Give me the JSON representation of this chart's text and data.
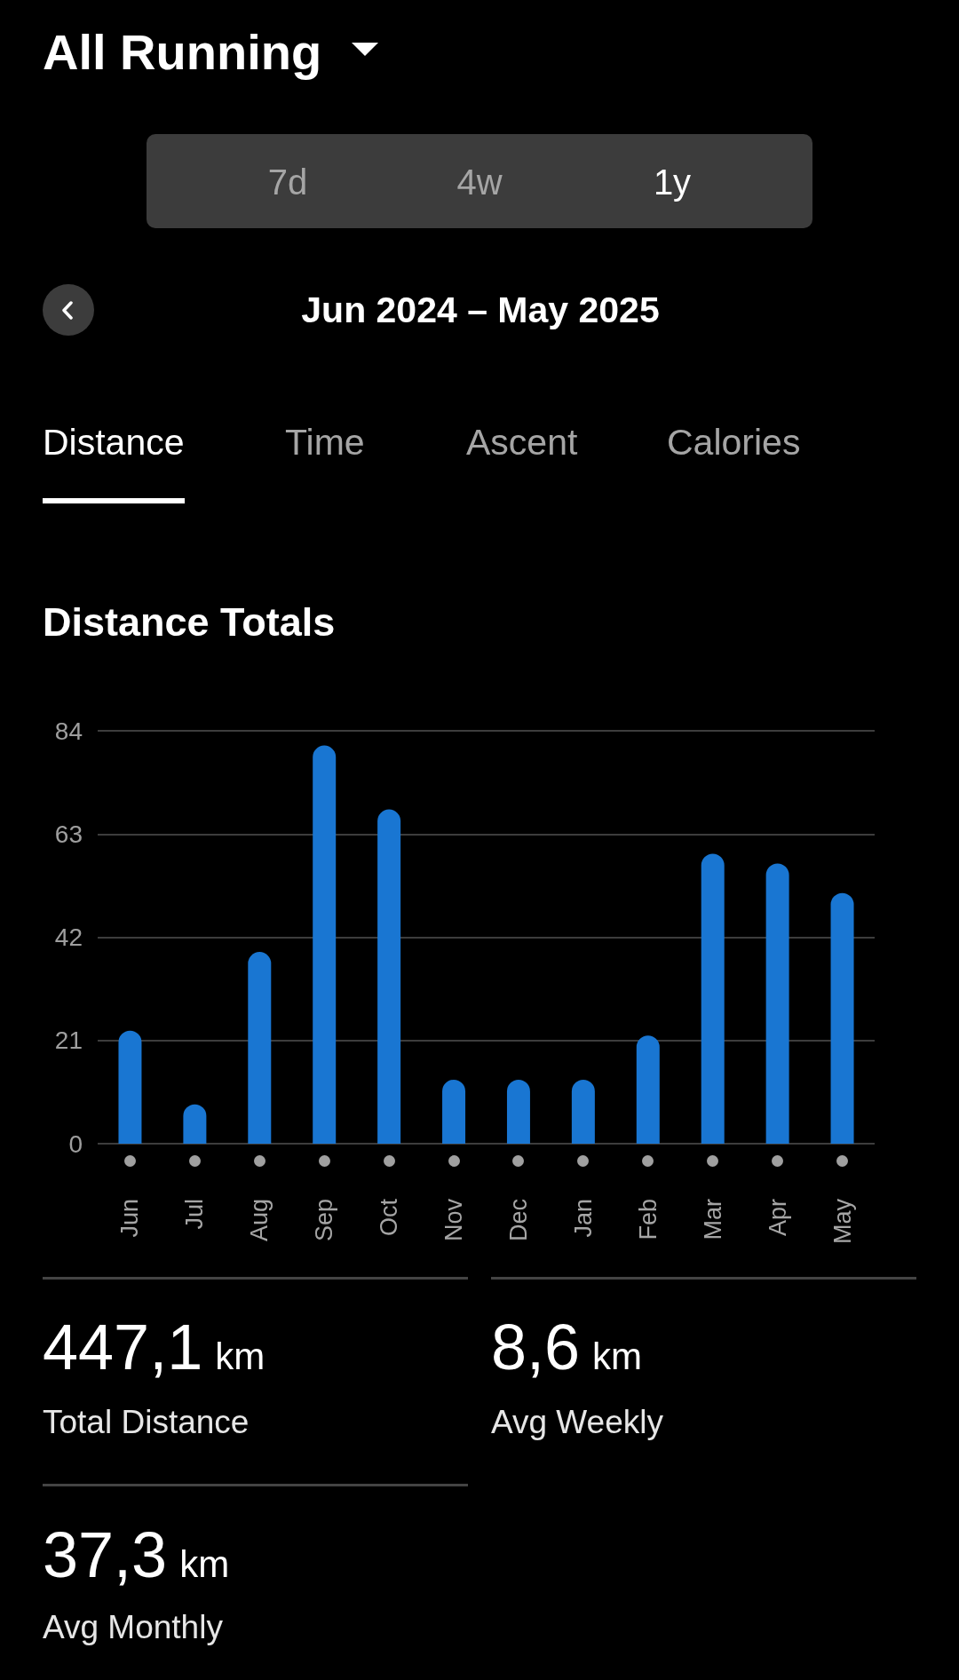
{
  "chart_data": {
    "type": "bar",
    "title": "Distance Totals",
    "subtitle": "Jun 2024 – May 2025",
    "categories": [
      "Jun",
      "Jul",
      "Aug",
      "Sep",
      "Oct",
      "Nov",
      "Dec",
      "Jan",
      "Feb",
      "Mar",
      "Apr",
      "May"
    ],
    "values": [
      23,
      8,
      39,
      81,
      68,
      13,
      13,
      13,
      22,
      59,
      57,
      51
    ],
    "color": "#1976d2",
    "ylim": [
      0,
      84
    ],
    "yticks": [
      0,
      21,
      42,
      63,
      84
    ],
    "grid": "y",
    "annotations": [
      "All Running",
      "7d",
      "4w",
      "1y",
      "Distance",
      "Time",
      "Ascent",
      "Calories",
      "447,1 km",
      "Total Distance",
      "8,6 km",
      "Avg Weekly",
      "37,3 km",
      "Avg Monthly"
    ]
  }
}
